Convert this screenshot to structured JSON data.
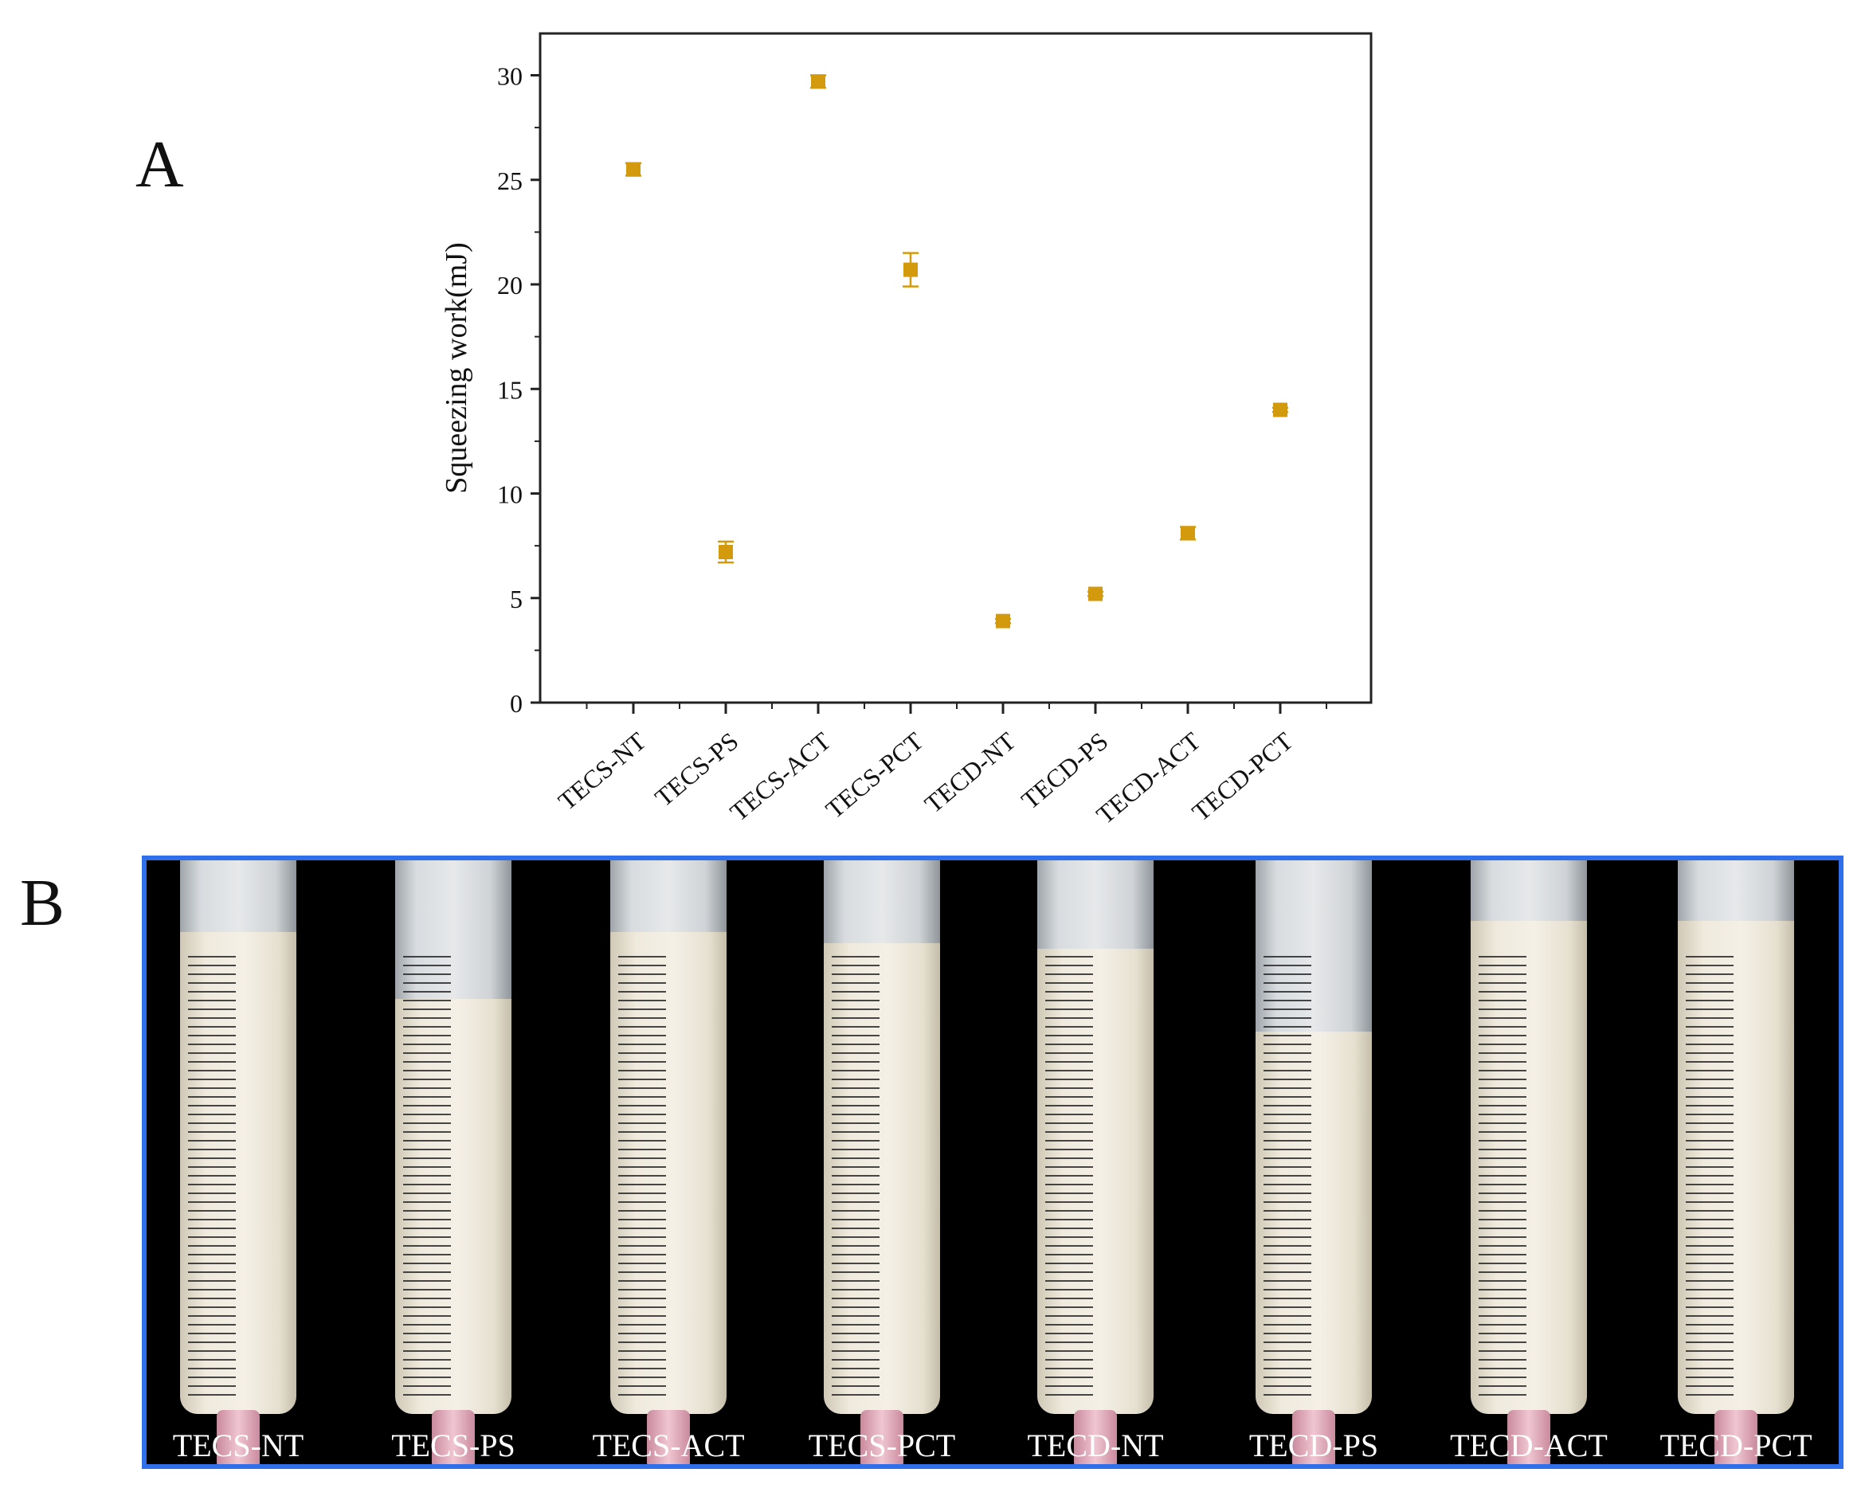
{
  "panels": {
    "a_letter": "A",
    "b_letter": "B"
  },
  "chart_data": {
    "type": "scatter",
    "title": "",
    "xlabel": "",
    "ylabel": "Squeezing work(mJ)",
    "ylim": [
      0,
      32
    ],
    "yticks": [
      0,
      5,
      10,
      15,
      20,
      25,
      30
    ],
    "grid": false,
    "legend": "none",
    "categories": [
      "TECS-NT",
      "TECS-PS",
      "TECS-ACT",
      "TECS-PCT",
      "TECD-NT",
      "TECD-PS",
      "TECD-ACT",
      "TECD-PCT"
    ],
    "values": [
      25.5,
      7.2,
      29.7,
      20.7,
      3.9,
      5.2,
      8.1,
      14.0
    ],
    "errors": [
      0.3,
      0.5,
      0.3,
      0.8,
      0.1,
      0.1,
      0.3,
      0.1
    ],
    "marker_color": "#d49a0e"
  },
  "photo_panel": {
    "border_color": "#2f6fea",
    "labels": [
      "TECS-NT",
      "TECS-PS",
      "TECS-ACT",
      "TECS-PCT",
      "TECD-NT",
      "TECD-PS",
      "TECD-ACT",
      "TECD-PCT"
    ],
    "fill_levels": [
      0.87,
      0.75,
      0.87,
      0.85,
      0.84,
      0.69,
      0.89,
      0.89
    ]
  }
}
